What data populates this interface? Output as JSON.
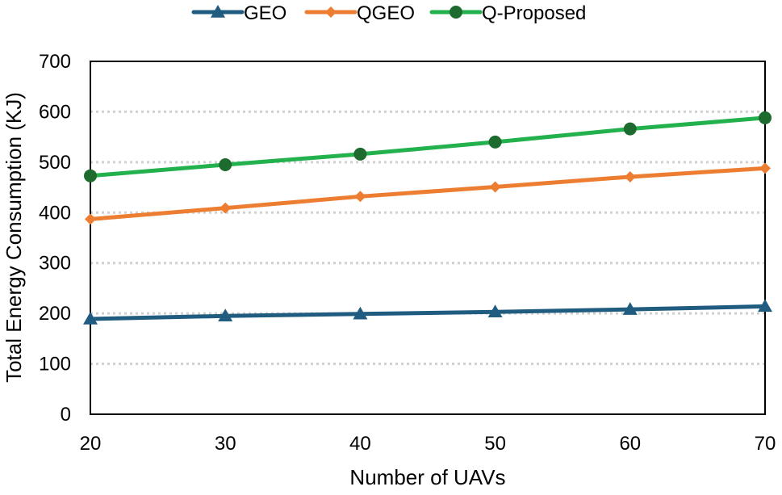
{
  "chart_data": {
    "type": "line",
    "title": "",
    "xlabel": "Number of UAVs",
    "ylabel": "Total Energy Consumption (KJ)",
    "x": [
      20,
      30,
      40,
      50,
      60,
      70
    ],
    "xlim": [
      20,
      70
    ],
    "ylim": [
      0,
      700
    ],
    "x_ticks": [
      "20",
      "30",
      "40",
      "50",
      "60",
      "70"
    ],
    "y_ticks": [
      "0",
      "100",
      "200",
      "300",
      "400",
      "500",
      "600",
      "700"
    ],
    "grid": "horizontal dotted",
    "legend_position": "top",
    "series": [
      {
        "name": "GEO",
        "marker": "triangle",
        "color": "#1f5c7f",
        "values": [
          189,
          195,
          199,
          203,
          208,
          214
        ]
      },
      {
        "name": "QGEO",
        "marker": "diamond",
        "color": "#ed7d31",
        "values": [
          387,
          409,
          432,
          451,
          471,
          488
        ]
      },
      {
        "name": "Q-Proposed",
        "marker": "circle",
        "color": "#22b14c",
        "marker_color": "#1e6b30",
        "values": [
          473,
          495,
          516,
          540,
          566,
          588
        ]
      }
    ]
  }
}
